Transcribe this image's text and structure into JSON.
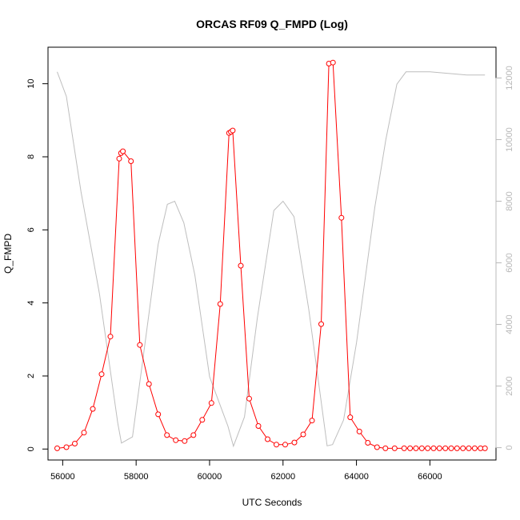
{
  "chart_data": {
    "type": "line",
    "title": "ORCAS RF09 Q_FMPD (Log)",
    "xlabel": "UTC Seconds",
    "ylabel": "Q_FMPD",
    "xlim": [
      55600,
      67800
    ],
    "ylim": [
      -0.3,
      11.0
    ],
    "y2lim": [
      -400,
      13000
    ],
    "xticks": [
      56000,
      58000,
      60000,
      62000,
      64000,
      66000
    ],
    "yticks": [
      0,
      2,
      4,
      6,
      8,
      10
    ],
    "y2ticks": [
      0,
      2000,
      4000,
      6000,
      8000,
      10000,
      12000
    ],
    "colors": {
      "series": "#ff0000",
      "altitude": "#bebebe",
      "axes": "#000000",
      "right_axis": "#b8b8b8"
    },
    "series": [
      {
        "marker": "open-circle",
        "x": [
          55850,
          56100,
          56330,
          56580,
          56820,
          57060,
          57300,
          57540,
          57590,
          57640,
          57860,
          58100,
          58350,
          58600,
          58840,
          59080,
          59320,
          59560,
          59800,
          60050,
          60290,
          60530,
          60580,
          60630,
          60850,
          61080,
          61330,
          61580,
          61820,
          62060,
          62310,
          62550,
          62790,
          63040,
          63250,
          63360,
          63590,
          63830,
          64080,
          64310,
          64560,
          64790,
          65040,
          65300,
          65460,
          65620,
          65780,
          65940,
          66100,
          66260,
          66420,
          66580,
          66740,
          66900,
          67060,
          67220,
          67380,
          67500
        ],
        "y": [
          0.02,
          0.05,
          0.15,
          0.45,
          1.1,
          2.05,
          3.08,
          7.95,
          8.1,
          8.15,
          7.88,
          2.85,
          1.78,
          0.95,
          0.38,
          0.24,
          0.22,
          0.38,
          0.8,
          1.26,
          3.97,
          8.65,
          8.68,
          8.72,
          5.02,
          1.38,
          0.63,
          0.27,
          0.12,
          0.12,
          0.18,
          0.4,
          0.78,
          3.42,
          10.55,
          10.58,
          6.33,
          0.87,
          0.48,
          0.17,
          0.05,
          0.02,
          0.02,
          0.02,
          0.02,
          0.02,
          0.02,
          0.02,
          0.02,
          0.02,
          0.02,
          0.02,
          0.02,
          0.02,
          0.02,
          0.02,
          0.02,
          0.02
        ]
      },
      {
        "axis": "right",
        "x": [
          55850,
          56100,
          56500,
          57000,
          57500,
          57600,
          57900,
          58200,
          58600,
          58850,
          59050,
          59300,
          59600,
          60000,
          60500,
          60650,
          60950,
          61300,
          61750,
          62000,
          62300,
          62700,
          63200,
          63350,
          63650,
          64000,
          64500,
          64800,
          65100,
          65350,
          66000,
          67000,
          67500
        ],
        "y": [
          12200,
          11400,
          8300,
          5000,
          800,
          150,
          350,
          3000,
          6600,
          7900,
          8000,
          7300,
          5600,
          2300,
          700,
          50,
          1000,
          4200,
          7700,
          8000,
          7500,
          4500,
          60,
          100,
          900,
          3400,
          7800,
          10000,
          11800,
          12200,
          12200,
          12100,
          12100
        ]
      }
    ]
  }
}
